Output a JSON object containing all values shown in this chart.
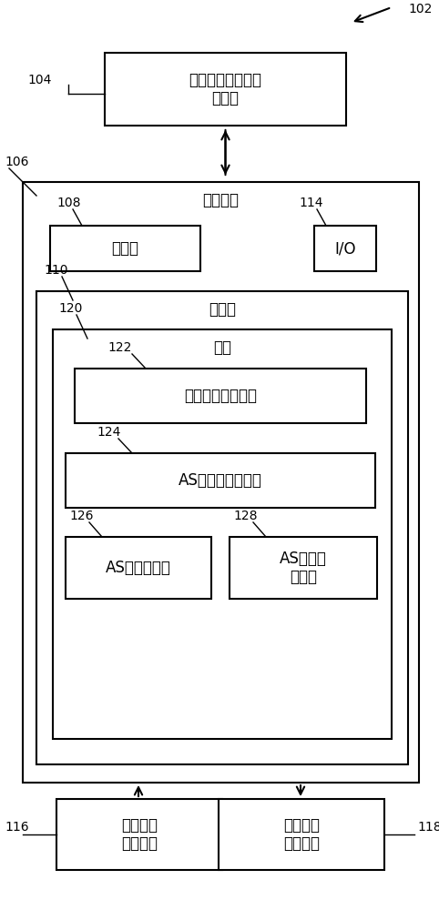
{
  "bg_color": "#ffffff",
  "text_104": "（多个）数字信息\n储存库",
  "text_106": "计算设备",
  "text_108": "处理器",
  "text_110": "存储器",
  "text_114": "I/O",
  "text_116": "（多个）\n输入设备",
  "text_118": "（多个）\n输出设备",
  "text_120": "指令",
  "text_122": "主动脉狭窄分类器",
  "text_124": "AS分类可视化引擎",
  "text_126": "AS因素标识符",
  "text_128": "AS严重性\n预测器",
  "label_102": "102",
  "label_104": "104",
  "label_106": "106",
  "label_108": "108",
  "label_110": "110",
  "label_114": "114",
  "label_116": "116",
  "label_118": "118",
  "label_120": "120",
  "label_122": "122",
  "label_124": "124",
  "label_126": "126",
  "label_128": "128",
  "figw": 4.82,
  "figh": 10.0,
  "dpi": 100
}
